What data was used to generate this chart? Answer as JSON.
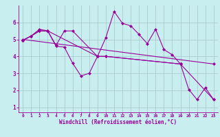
{
  "xlabel": "Windchill (Refroidissement éolien,°C)",
  "bg_color": "#c8eef0",
  "line_color": "#990099",
  "grid_color": "#aacccc",
  "axes_bg": "#c8eef0",
  "xlim": [
    -0.5,
    23.5
  ],
  "ylim": [
    0.7,
    7.0
  ],
  "xticks": [
    0,
    1,
    2,
    3,
    4,
    5,
    6,
    7,
    8,
    9,
    10,
    11,
    12,
    13,
    14,
    15,
    16,
    17,
    18,
    19,
    20,
    21,
    22,
    23
  ],
  "yticks": [
    1,
    2,
    3,
    4,
    5,
    6
  ],
  "series": [
    {
      "x": [
        0,
        1,
        2,
        3,
        4,
        5,
        6,
        7,
        8,
        9,
        10,
        11,
        12,
        13,
        14,
        15,
        16,
        17,
        18,
        19,
        20,
        21,
        22,
        23
      ],
      "y": [
        4.95,
        5.2,
        5.6,
        5.5,
        4.6,
        4.55,
        3.6,
        2.85,
        3.0,
        4.0,
        5.1,
        6.65,
        5.95,
        5.8,
        5.3,
        4.75,
        5.6,
        4.4,
        4.1,
        3.55,
        2.05,
        1.45,
        2.15,
        1.45
      ]
    },
    {
      "x": [
        0,
        1,
        2,
        3,
        4,
        5,
        6,
        9,
        10,
        19
      ],
      "y": [
        4.95,
        5.2,
        5.5,
        5.5,
        4.65,
        5.5,
        5.5,
        4.0,
        4.0,
        3.55
      ]
    },
    {
      "x": [
        0,
        1,
        2,
        3,
        9,
        10,
        19,
        23
      ],
      "y": [
        4.95,
        5.2,
        5.5,
        5.5,
        4.0,
        4.0,
        3.55,
        1.45
      ]
    },
    {
      "x": [
        0,
        23
      ],
      "y": [
        5.0,
        3.55
      ]
    }
  ]
}
